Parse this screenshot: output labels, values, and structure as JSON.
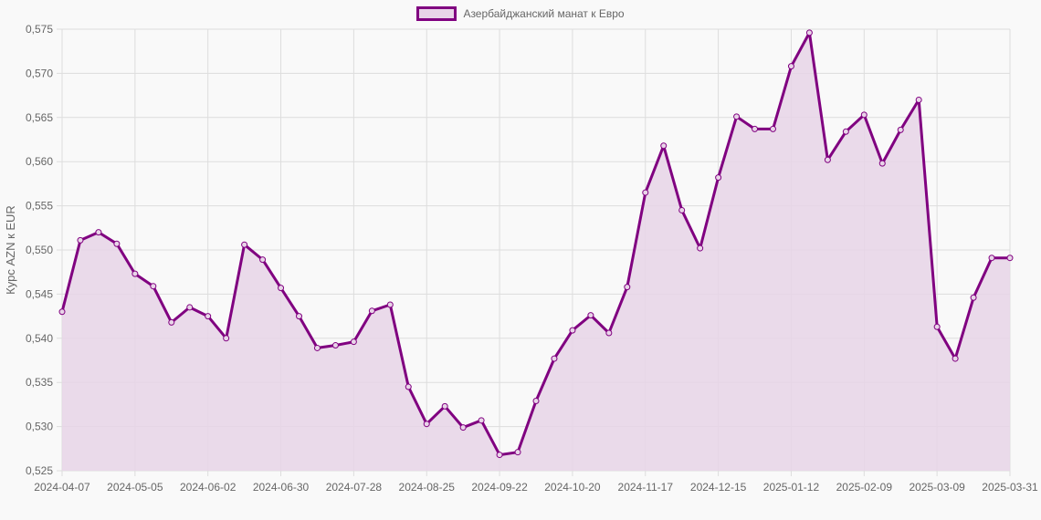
{
  "chart_data": {
    "type": "line",
    "title": "",
    "xlabel": "",
    "ylabel": "Курс AZN к EUR",
    "ylim": [
      0.525,
      0.575
    ],
    "grid": true,
    "legend_position": "top",
    "colors": {
      "line": "#800080",
      "fill": "#e8d5e8",
      "grid": "#dddddd",
      "background": "#f9f9f9"
    },
    "y_ticks": [
      "0,575",
      "0,570",
      "0,565",
      "0,560",
      "0,555",
      "0,550",
      "0,545",
      "0,540",
      "0,535",
      "0,530",
      "0,525"
    ],
    "x_tick_labels": [
      "2024-04-07",
      "2024-05-05",
      "2024-06-02",
      "2024-06-30",
      "2024-07-28",
      "2024-08-25",
      "2024-09-22",
      "2024-10-20",
      "2024-11-17",
      "2024-12-15",
      "2025-01-12",
      "2025-02-09",
      "2025-03-09",
      "2025-03-31"
    ],
    "series": [
      {
        "name": "Азербайджанский манат к Евро",
        "x": [
          "2024-04-07",
          "2024-04-14",
          "2024-04-21",
          "2024-04-28",
          "2024-05-05",
          "2024-05-12",
          "2024-05-19",
          "2024-05-26",
          "2024-06-02",
          "2024-06-09",
          "2024-06-16",
          "2024-06-23",
          "2024-06-30",
          "2024-07-07",
          "2024-07-14",
          "2024-07-21",
          "2024-07-28",
          "2024-08-04",
          "2024-08-11",
          "2024-08-18",
          "2024-08-25",
          "2024-09-01",
          "2024-09-08",
          "2024-09-15",
          "2024-09-22",
          "2024-09-29",
          "2024-10-06",
          "2024-10-13",
          "2024-10-20",
          "2024-10-27",
          "2024-11-03",
          "2024-11-10",
          "2024-11-17",
          "2024-11-24",
          "2024-12-01",
          "2024-12-08",
          "2024-12-15",
          "2024-12-22",
          "2024-12-29",
          "2025-01-05",
          "2025-01-12",
          "2025-01-19",
          "2025-01-26",
          "2025-02-02",
          "2025-02-09",
          "2025-02-16",
          "2025-02-23",
          "2025-03-02",
          "2025-03-09",
          "2025-03-16",
          "2025-03-23",
          "2025-03-30",
          "2025-03-31"
        ],
        "values": [
          0.543,
          0.5511,
          0.552,
          0.5507,
          0.5473,
          0.5459,
          0.5418,
          0.5435,
          0.5425,
          0.54,
          0.5506,
          0.5489,
          0.5457,
          0.5425,
          0.5389,
          0.5392,
          0.5396,
          0.5431,
          0.5438,
          0.5345,
          0.5303,
          0.5323,
          0.5299,
          0.5307,
          0.5268,
          0.5271,
          0.5329,
          0.5377,
          0.5409,
          0.5426,
          0.5406,
          0.5458,
          0.5565,
          0.5618,
          0.5545,
          0.5502,
          0.5582,
          0.5651,
          0.5637,
          0.5637,
          0.5708,
          0.5746,
          0.5602,
          0.5634,
          0.5653,
          0.5598,
          0.5636,
          0.567,
          0.5413,
          0.5377,
          0.5446,
          0.5491,
          0.5491
        ]
      }
    ]
  },
  "legend": {
    "label": "Азербайджанский манат к Евро"
  }
}
